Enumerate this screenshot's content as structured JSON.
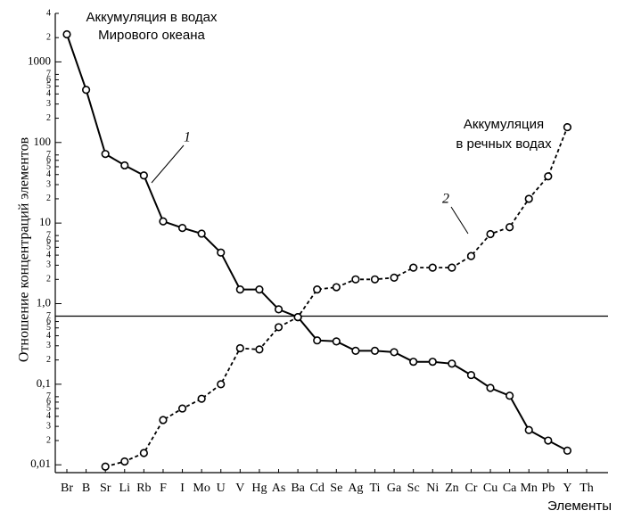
{
  "chart_data": {
    "type": "line",
    "log_scale": true,
    "y_label": "Отношение концентраций элементов",
    "x_label": "Элементы",
    "annotations": [
      "Аккумуляция в водах",
      "Мирового океана",
      "Аккумуляция",
      "в речных водах"
    ],
    "categories": [
      "Br",
      "B",
      "Sr",
      "Li",
      "Rb",
      "F",
      "I",
      "Mo",
      "U",
      "V",
      "Hg",
      "As",
      "Ba",
      "Cd",
      "Se",
      "Ag",
      "Ti",
      "Ga",
      "Sc",
      "Ni",
      "Zn",
      "Cr",
      "Cu",
      "Ca",
      "Mn",
      "Pb",
      "Y",
      "Th"
    ],
    "series": [
      {
        "name": "1",
        "color": "#000000",
        "line_style": "solid",
        "values": [
          2200,
          450,
          72,
          52,
          39,
          10.5,
          8.7,
          7.4,
          4.3,
          1.5,
          1.5,
          0.85,
          0.68,
          0.35,
          0.34,
          0.26,
          0.26,
          0.25,
          0.19,
          0.19,
          0.18,
          0.13,
          0.09,
          0.072,
          0.027,
          0.02,
          0.015,
          null
        ]
      },
      {
        "name": "2",
        "color": "#000000",
        "line_style": "dashed",
        "values": [
          null,
          null,
          0.0095,
          0.011,
          0.014,
          0.036,
          0.05,
          0.066,
          0.1,
          0.28,
          0.27,
          0.51,
          0.68,
          1.5,
          1.6,
          2.0,
          2.0,
          2.1,
          2.8,
          2.8,
          2.8,
          3.9,
          7.3,
          8.9,
          20,
          38,
          155,
          null
        ]
      }
    ],
    "hline": 0.7,
    "ylim": [
      0.008,
      4000
    ],
    "yticks": [
      {
        "value": 0.01,
        "label": "0,01"
      },
      {
        "value": 0.02,
        "label": "2"
      },
      {
        "value": 0.03,
        "label": "3"
      },
      {
        "value": 0.04,
        "label": "4"
      },
      {
        "value": 0.05,
        "label": "5"
      },
      {
        "value": 0.06,
        "label": "6"
      },
      {
        "value": 0.07,
        "label": "7"
      },
      {
        "value": 0.1,
        "label": "0,1"
      },
      {
        "value": 0.2,
        "label": "2"
      },
      {
        "value": 0.3,
        "label": "3"
      },
      {
        "value": 0.4,
        "label": "4"
      },
      {
        "value": 0.5,
        "label": "5"
      },
      {
        "value": 0.6,
        "label": "6"
      },
      {
        "value": 0.7,
        "label": "7"
      },
      {
        "value": 1,
        "label": "1,0"
      },
      2,
      3,
      4,
      5,
      6,
      7,
      10,
      {
        "value": 20,
        "label": "2"
      },
      {
        "value": 30,
        "label": "3"
      },
      {
        "value": 40,
        "label": "4"
      },
      {
        "value": 50,
        "label": "5"
      },
      {
        "value": 60,
        "label": "6"
      },
      {
        "value": 70,
        "label": "7"
      },
      100,
      {
        "value": 200,
        "label": "2"
      },
      {
        "value": 300,
        "label": "3"
      },
      {
        "value": 400,
        "label": "4"
      },
      {
        "value": 500,
        "label": "5"
      },
      {
        "value": 600,
        "label": "6"
      },
      {
        "value": 700,
        "label": "7"
      },
      1000,
      {
        "value": 2000,
        "label": "2"
      },
      {
        "value": 4000,
        "label": "4"
      }
    ]
  }
}
